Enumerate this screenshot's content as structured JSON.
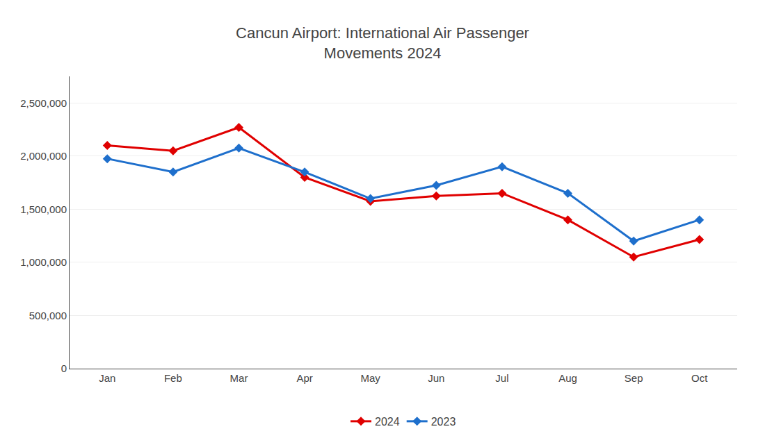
{
  "chart_data": {
    "type": "line",
    "title": "Cancun Airport: International Air Passenger\nMovements 2024",
    "categories": [
      "Jan",
      "Feb",
      "Mar",
      "Apr",
      "May",
      "Jun",
      "Jul",
      "Aug",
      "Sep",
      "Oct"
    ],
    "series": [
      {
        "name": "2024",
        "color": "#e00000",
        "values": [
          2100000,
          2050000,
          2270000,
          1800000,
          1575000,
          1625000,
          1650000,
          1400000,
          1050000,
          1215000
        ]
      },
      {
        "name": "2023",
        "color": "#1e6fcc",
        "values": [
          1975000,
          1850000,
          2075000,
          1850000,
          1600000,
          1725000,
          1900000,
          1650000,
          1200000,
          1400000
        ]
      }
    ],
    "ylim": [
      0,
      2750000
    ],
    "yticks": [
      0,
      {
        "value": 500000,
        "label": "500,000"
      },
      {
        "value": 1000000,
        "label": "1,000,000"
      },
      {
        "value": 1500000,
        "label": "1,500,000"
      },
      {
        "value": 2000000,
        "label": "2,000,000"
      },
      {
        "value": 2500000,
        "label": "2,500,000"
      }
    ],
    "grid": true,
    "legend": "bottom",
    "marker": "diamond"
  }
}
